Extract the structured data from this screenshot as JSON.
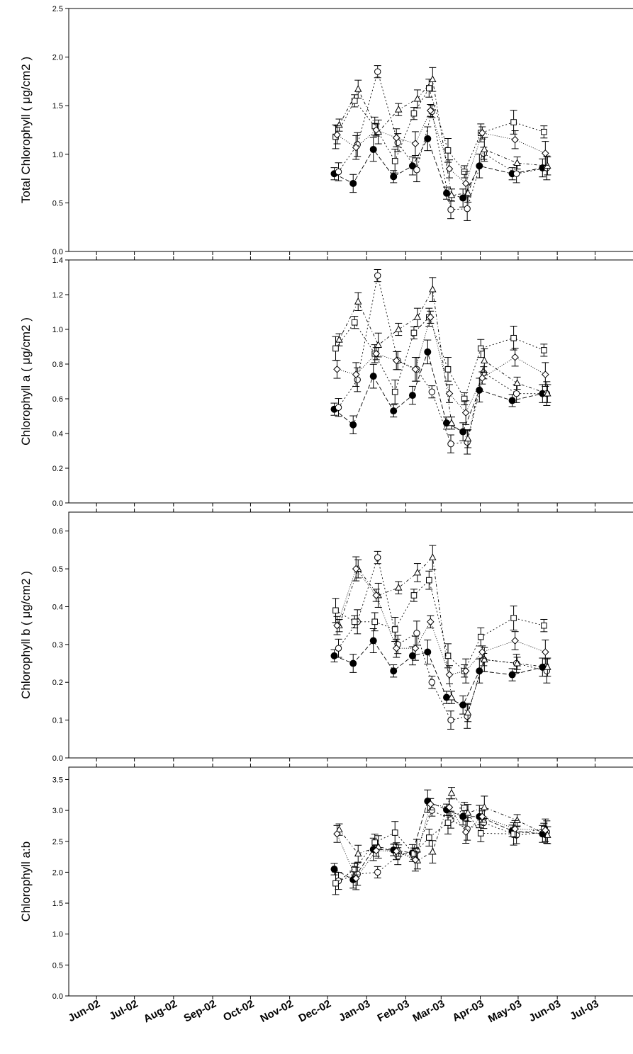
{
  "figure": {
    "x_tick_labels": [
      "Jun-02",
      "Jul-02",
      "Aug-02",
      "Sep-02",
      "Oct-02",
      "Nov-02",
      "Dec-02",
      "Jan-03",
      "Feb-03",
      "Mar-03",
      "Apr-03",
      "May-03",
      "Jun-03",
      "Jul-03"
    ]
  },
  "chart_data": [
    {
      "type": "scatter",
      "ylabel": "Total Chlorophyll ( μg/cm2 )",
      "ylim": [
        0,
        2.5
      ],
      "y_ticks": [
        "0.0",
        "0.5",
        "1.0",
        "1.5",
        "2.0",
        "2.5"
      ],
      "x": [
        "2002-12-08",
        "2002-12-23",
        "2003-01-08",
        "2003-01-24",
        "2003-02-08",
        "2003-02-20",
        "2003-03-07",
        "2003-03-20",
        "2003-04-02",
        "2003-04-28",
        "2003-05-22"
      ],
      "series": [
        {
          "marker": "filled-circle",
          "values": [
            0.8,
            0.7,
            1.05,
            0.77,
            0.88,
            1.16,
            0.6,
            0.55,
            0.88,
            0.8,
            0.86
          ]
        },
        {
          "marker": "open-circle",
          "values": [
            0.82,
            1.1,
            1.85,
            1.12,
            0.84,
            1.44,
            0.43,
            0.44,
            1.01,
            0.8,
            0.86
          ]
        },
        {
          "marker": "open-square",
          "values": [
            1.18,
            1.55,
            1.29,
            0.93,
            1.42,
            1.68,
            1.04,
            0.82,
            1.22,
            1.33,
            1.23
          ]
        },
        {
          "marker": "open-triangle",
          "values": [
            1.3,
            1.67,
            1.23,
            1.46,
            1.57,
            1.77,
            0.58,
            0.6,
            1.05,
            0.91,
            0.88
          ]
        },
        {
          "marker": "open-diamond",
          "values": [
            1.2,
            1.07,
            1.25,
            1.17,
            1.11,
            1.45,
            0.85,
            0.7,
            1.22,
            1.15,
            1.01
          ]
        }
      ]
    },
    {
      "type": "scatter",
      "ylabel": "Chlorophyll a ( μg/cm2 )",
      "ylim": [
        0,
        1.4
      ],
      "y_ticks": [
        "0.0",
        "0.2",
        "0.4",
        "0.6",
        "0.8",
        "1.0",
        "1.2",
        "1.4"
      ],
      "x": [
        "2002-12-08",
        "2002-12-23",
        "2003-01-08",
        "2003-01-24",
        "2003-02-08",
        "2003-02-20",
        "2003-03-07",
        "2003-03-20",
        "2003-04-02",
        "2003-04-28",
        "2003-05-22"
      ],
      "series": [
        {
          "marker": "filled-circle",
          "values": [
            0.54,
            0.45,
            0.73,
            0.53,
            0.62,
            0.87,
            0.46,
            0.41,
            0.65,
            0.59,
            0.63
          ]
        },
        {
          "marker": "open-circle",
          "values": [
            0.55,
            0.71,
            1.31,
            0.82,
            0.77,
            0.64,
            0.34,
            0.35,
            0.75,
            0.63,
            0.63
          ]
        },
        {
          "marker": "open-square",
          "values": [
            0.89,
            1.04,
            0.86,
            0.64,
            0.98,
            1.07,
            0.77,
            0.6,
            0.89,
            0.95,
            0.88
          ]
        },
        {
          "marker": "open-triangle",
          "values": [
            0.94,
            1.16,
            0.91,
            1.0,
            1.07,
            1.23,
            0.46,
            0.37,
            0.82,
            0.69,
            0.63
          ]
        },
        {
          "marker": "open-diamond",
          "values": [
            0.77,
            0.74,
            0.86,
            0.82,
            0.77,
            1.07,
            0.63,
            0.52,
            0.72,
            0.84,
            0.74
          ]
        }
      ]
    },
    {
      "type": "scatter",
      "ylabel": "Chlorophyll b ( μg/cm2 )",
      "ylim": [
        0,
        0.65
      ],
      "y_ticks": [
        "0.0",
        "0.1",
        "0.2",
        "0.3",
        "0.4",
        "0.5",
        "0.6"
      ],
      "x": [
        "2002-12-08",
        "2002-12-23",
        "2003-01-08",
        "2003-01-24",
        "2003-02-08",
        "2003-02-20",
        "2003-03-07",
        "2003-03-20",
        "2003-04-02",
        "2003-04-28",
        "2003-05-22"
      ],
      "series": [
        {
          "marker": "filled-circle",
          "values": [
            0.27,
            0.25,
            0.31,
            0.23,
            0.27,
            0.28,
            0.16,
            0.14,
            0.23,
            0.22,
            0.24
          ]
        },
        {
          "marker": "open-circle",
          "values": [
            0.29,
            0.36,
            0.53,
            0.3,
            0.33,
            0.2,
            0.1,
            0.11,
            0.26,
            0.25,
            0.23
          ]
        },
        {
          "marker": "open-square",
          "values": [
            0.39,
            0.36,
            0.36,
            0.34,
            0.43,
            0.47,
            0.27,
            0.23,
            0.32,
            0.37,
            0.35
          ]
        },
        {
          "marker": "open-triangle",
          "values": [
            0.35,
            0.5,
            0.43,
            0.45,
            0.49,
            0.53,
            0.16,
            0.12,
            0.26,
            0.25,
            0.24
          ]
        },
        {
          "marker": "open-diamond",
          "values": [
            0.35,
            0.5,
            0.43,
            0.29,
            0.29,
            0.36,
            0.22,
            0.23,
            0.28,
            0.31,
            0.28
          ]
        }
      ]
    },
    {
      "type": "scatter",
      "ylabel": "Chlorophyll a:b",
      "ylim": [
        0,
        3.7
      ],
      "y_ticks": [
        "0.0",
        "0.5",
        "1.0",
        "1.5",
        "2.0",
        "2.5",
        "3.0",
        "3.5"
      ],
      "x": [
        "2002-12-08",
        "2002-12-23",
        "2003-01-08",
        "2003-01-24",
        "2003-02-08",
        "2003-02-20",
        "2003-03-07",
        "2003-03-20",
        "2003-04-02",
        "2003-04-28",
        "2003-05-22"
      ],
      "series": [
        {
          "marker": "filled-circle",
          "values": [
            2.05,
            1.88,
            2.37,
            2.36,
            2.31,
            3.15,
            3.01,
            2.9,
            2.9,
            2.67,
            2.62
          ]
        },
        {
          "marker": "open-circle",
          "values": [
            1.86,
            1.97,
            2.0,
            2.26,
            2.35,
            3.0,
            2.85,
            2.7,
            2.8,
            2.6,
            2.65
          ]
        },
        {
          "marker": "open-square",
          "values": [
            1.82,
            2.05,
            2.48,
            2.64,
            2.3,
            2.56,
            2.8,
            3.04,
            2.63,
            2.62,
            2.7
          ]
        },
        {
          "marker": "open-triangle",
          "values": [
            2.69,
            2.3,
            2.41,
            2.35,
            2.19,
            2.33,
            3.28,
            2.96,
            3.05,
            2.84,
            2.6
          ]
        },
        {
          "marker": "open-diamond",
          "values": [
            2.62,
            1.9,
            2.35,
            2.34,
            2.2,
            3.1,
            3.05,
            2.65,
            2.9,
            2.7,
            2.68
          ]
        }
      ]
    }
  ]
}
